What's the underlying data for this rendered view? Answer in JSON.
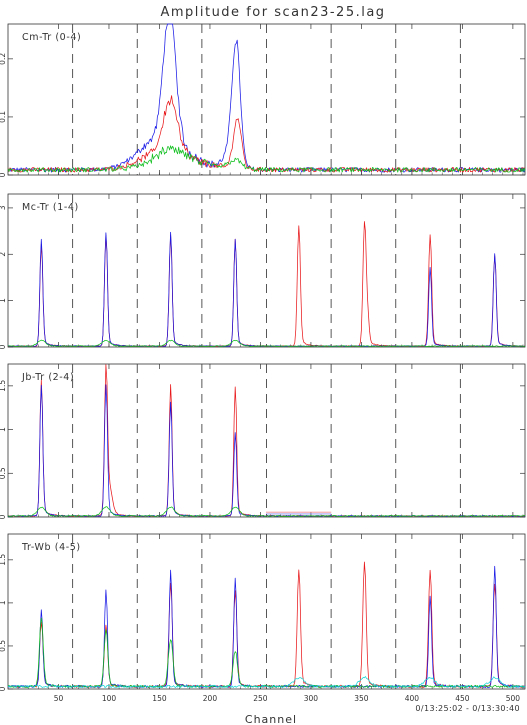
{
  "figure": {
    "title": "Amplitude for scan23-25.lag",
    "xlabel": "Channel",
    "time_range": "0/13:25:02 - 0/13:30:40"
  },
  "colors": {
    "red": "#e8191c",
    "blue": "#1a1ae6",
    "green": "#0fbf1e",
    "cyan": "#19d6d6",
    "axis": "#333333"
  },
  "chart_data": [
    {
      "type": "line",
      "panel": "Cm-Tr (0-4)",
      "label": "Cm-Tr (0-4)",
      "xlim": [
        0,
        512
      ],
      "ylim": [
        0,
        0.26
      ],
      "yticks": [
        0,
        0.1,
        0.2
      ],
      "xticks": [
        50,
        100,
        150,
        200,
        250,
        300,
        350,
        400,
        450,
        500
      ],
      "dividers": [
        64,
        128,
        192,
        256,
        320,
        384,
        448
      ],
      "baseline": 0.009,
      "bumps": [
        [
          170,
          28,
          0.015
        ]
      ],
      "series": [
        {
          "color": "blue",
          "peaks": [
            [
              160,
              0.222,
              6
            ],
            [
              226,
              0.2,
              4
            ],
            [
              150,
              0.045,
              20
            ],
            [
              220,
              0.03,
              6
            ]
          ]
        },
        {
          "color": "red",
          "peaks": [
            [
              161,
              0.088,
              7
            ],
            [
              227,
              0.085,
              4
            ],
            [
              150,
              0.02,
              20
            ]
          ]
        },
        {
          "color": "green",
          "peaks": [
            [
              160,
              0.02,
              14
            ],
            [
              225,
              0.015,
              6
            ]
          ]
        }
      ]
    },
    {
      "type": "line",
      "panel": "Mc-Tr (1-4)",
      "label": "Mc-Tr (1-4)",
      "xlim": [
        0,
        512
      ],
      "ylim": [
        0,
        3.3
      ],
      "yticks": [
        0,
        1,
        2,
        3
      ],
      "xticks": [
        50,
        100,
        150,
        200,
        250,
        300,
        350,
        400,
        450,
        500
      ],
      "dividers": [
        64,
        128,
        192,
        256,
        320,
        384,
        448
      ],
      "baseline": 0.02,
      "bumps": [],
      "series": [
        {
          "color": "red",
          "peaks": [
            [
              33,
              2.2,
              1.4
            ],
            [
              97,
              2.4,
              1.4
            ],
            [
              161,
              2.4,
              1.4
            ],
            [
              225,
              2.3,
              1.4
            ],
            [
              288,
              2.6,
              1.5
            ],
            [
              353,
              2.6,
              1.5
            ],
            [
              418,
              2.4,
              1.5
            ],
            [
              482,
              1.95,
              1.5
            ],
            [
              356,
              0.6,
              1.5
            ]
          ]
        },
        {
          "color": "blue",
          "peaks": [
            [
              33,
              2.3,
              1.4
            ],
            [
              97,
              2.45,
              1.4
            ],
            [
              161,
              2.45,
              1.4
            ],
            [
              225,
              2.3,
              1.4
            ],
            [
              418,
              1.7,
              1.4
            ],
            [
              482,
              2.0,
              1.4
            ]
          ]
        },
        {
          "color": "green",
          "peaks": [
            [
              33,
              0.12,
              4
            ],
            [
              97,
              0.12,
              4
            ],
            [
              161,
              0.12,
              4
            ],
            [
              225,
              0.12,
              4
            ]
          ]
        }
      ]
    },
    {
      "type": "line",
      "panel": "Jb-Tr (2-4)",
      "label": "Jb-Tr (2-4)",
      "xlim": [
        0,
        512
      ],
      "ylim": [
        0,
        1.75
      ],
      "yticks": [
        0,
        0.5,
        1,
        1.5
      ],
      "xticks": [
        50,
        100,
        150,
        200,
        250,
        300,
        350,
        400,
        450,
        500
      ],
      "dividers": [
        64,
        128,
        192,
        256,
        320,
        384,
        448
      ],
      "baseline": 0.012,
      "bumps": [],
      "series": [
        {
          "color": "red",
          "peaks": [
            [
              33,
              1.55,
              1.4
            ],
            [
              97,
              1.55,
              1.4
            ],
            [
              161,
              1.5,
              1.4
            ],
            [
              225,
              1.48,
              1.4
            ],
            [
              100,
              0.3,
              3
            ]
          ]
        },
        {
          "color": "blue",
          "peaks": [
            [
              33,
              1.5,
              1.4
            ],
            [
              97,
              1.5,
              1.4
            ],
            [
              161,
              1.3,
              1.4
            ],
            [
              225,
              0.95,
              1.4
            ]
          ]
        },
        {
          "color": "green",
          "peaks": [
            [
              33,
              0.1,
              4
            ],
            [
              97,
              0.1,
              4
            ],
            [
              161,
              0.1,
              4
            ],
            [
              225,
              0.1,
              4
            ]
          ]
        }
      ],
      "plateaus": [
        {
          "color": "red",
          "x": [
            256,
            320
          ],
          "y": 0.055
        },
        {
          "color": "blue",
          "x": [
            256,
            320
          ],
          "y": 0.035
        }
      ]
    },
    {
      "type": "line",
      "panel": "Tr-Wb (4-5)",
      "label": "Tr-Wb (4-5)",
      "xlim": [
        0,
        512
      ],
      "ylim": [
        0,
        1.8
      ],
      "yticks": [
        0,
        0.5,
        1,
        1.5
      ],
      "xticks": [
        50,
        100,
        150,
        200,
        250,
        300,
        350,
        400,
        450,
        500
      ],
      "dividers": [
        64,
        128,
        192,
        256,
        320,
        384,
        448
      ],
      "baseline": 0.03,
      "bumps": [],
      "series": [
        {
          "color": "red",
          "peaks": [
            [
              33,
              0.75,
              1.6
            ],
            [
              97,
              0.7,
              1.6
            ],
            [
              161,
              1.2,
              1.6
            ],
            [
              225,
              1.1,
              1.6
            ],
            [
              288,
              1.35,
              1.6
            ],
            [
              353,
              1.45,
              1.6
            ],
            [
              418,
              1.35,
              1.6
            ],
            [
              482,
              1.2,
              1.6
            ]
          ]
        },
        {
          "color": "blue",
          "peaks": [
            [
              33,
              0.9,
              1.4
            ],
            [
              97,
              1.12,
              1.4
            ],
            [
              161,
              1.35,
              1.4
            ],
            [
              225,
              1.25,
              1.4
            ],
            [
              418,
              1.05,
              1.4
            ],
            [
              482,
              1.4,
              1.4
            ]
          ]
        },
        {
          "color": "green",
          "peaks": [
            [
              33,
              0.8,
              1.8
            ],
            [
              97,
              0.65,
              1.8
            ],
            [
              161,
              0.55,
              2.2
            ],
            [
              225,
              0.4,
              2.2
            ]
          ]
        },
        {
          "color": "cyan",
          "peaks": [
            [
              288,
              0.1,
              5
            ],
            [
              353,
              0.1,
              5
            ],
            [
              418,
              0.1,
              5
            ],
            [
              482,
              0.1,
              5
            ]
          ]
        }
      ]
    }
  ]
}
